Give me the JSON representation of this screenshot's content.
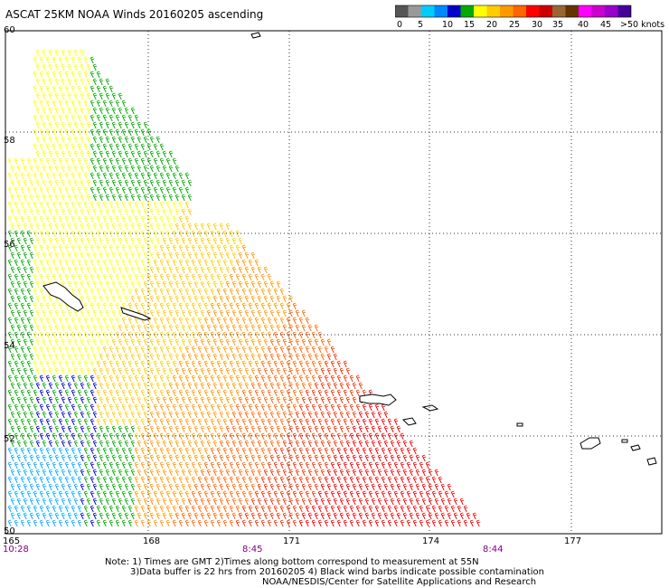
{
  "title": "ASCAT 25KM NOAA Winds 20160205 ascending",
  "colorbar": {
    "colors": [
      "#555555",
      "#999999",
      "#00ccff",
      "#0088ff",
      "#0000cc",
      "#00aa00",
      "#ffff00",
      "#ffcc00",
      "#ff9900",
      "#ff6600",
      "#ff0000",
      "#cc0000",
      "#996633",
      "#663300",
      "#ff00ff",
      "#cc00cc",
      "#9900cc",
      "#440099"
    ],
    "labels": [
      "0",
      "5",
      "10",
      "15",
      "20",
      "25",
      "30",
      "35",
      "40",
      "45",
      ">50 knots"
    ]
  },
  "map": {
    "lat_labels": [
      "60",
      "58",
      "56",
      "54",
      "52",
      "50"
    ],
    "lon_labels": [
      "165",
      "168",
      "171",
      "174",
      "177"
    ],
    "time_labels": [
      "10:28",
      "8:45",
      "8:44"
    ]
  },
  "notes": {
    "line1": "Note: 1) Times are GMT 2)Times along bottom correspond to measurement at 55N",
    "line2": "3)Data buffer is 22 hrs from 20160205 4) Black wind barbs indicate possible contamination",
    "credit": "NOAA/NESDIS/Center for Satellite Applications and Research"
  }
}
